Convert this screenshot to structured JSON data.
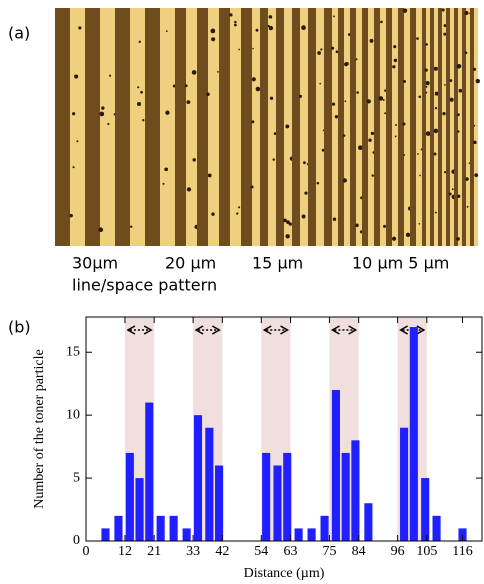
{
  "panel_labels": [
    "(a)",
    "(b)"
  ],
  "image_labels": {
    "pitches": [
      "30µm",
      "20 µm",
      "15 µm",
      "10 µm 5 µm"
    ],
    "caption": "line/space pattern"
  },
  "chart_data": {
    "type": "bar",
    "xlabel": "Distance (µm)",
    "ylabel": "Number of the toner particle",
    "x": [
      6,
      10,
      13.5,
      16.5,
      19.5,
      23,
      27,
      31,
      34.5,
      38,
      41,
      55.5,
      59,
      62,
      65.5,
      69.5,
      73.5,
      77,
      80,
      83,
      87,
      98,
      101,
      104.5,
      108,
      116
    ],
    "values": [
      1,
      2,
      7,
      5,
      11,
      2,
      2,
      1,
      10,
      9,
      6,
      7,
      6,
      7,
      1,
      1,
      2,
      12,
      7,
      8,
      3,
      9,
      17,
      5,
      2,
      1
    ],
    "color": "#1f1fff",
    "highlight_ranges": [
      [
        12,
        21
      ],
      [
        33,
        42
      ],
      [
        54,
        63
      ],
      [
        75,
        84
      ],
      [
        96,
        105
      ]
    ],
    "highlight_color": "#f1dede",
    "xlim": [
      0,
      122
    ],
    "xticks": [
      0,
      12,
      21,
      33,
      42,
      54,
      63,
      75,
      84,
      96,
      105,
      116
    ],
    "ylim": [
      0,
      17.8
    ],
    "yticks": [
      0,
      5,
      10,
      15
    ]
  }
}
